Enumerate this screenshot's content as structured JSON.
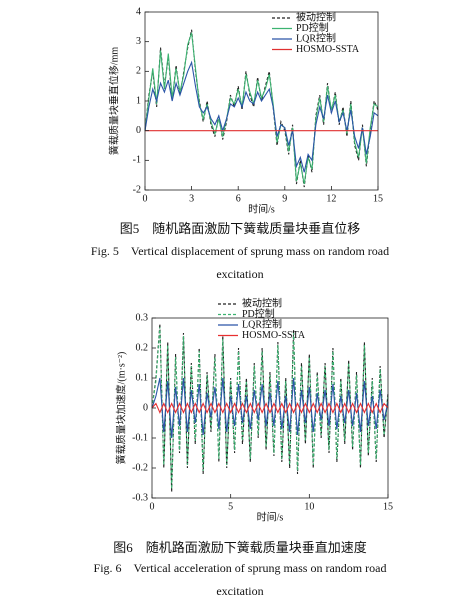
{
  "chart_data": [
    {
      "type": "line",
      "caption_cn": "图5　随机路面激励下簧载质量块垂直位移",
      "caption_en": "Fig. 5　Vertical displacement of sprung mass on random road excitation",
      "xlabel": "时间/s",
      "ylabel": "簧载质量块垂直位移/mm",
      "xlim": [
        0,
        15
      ],
      "ylim": [
        -2,
        4
      ],
      "xticks": [
        0,
        3,
        6,
        9,
        12,
        15
      ],
      "yticks": [
        -2,
        -1,
        0,
        1,
        2,
        3,
        4
      ],
      "x": [
        0,
        0.25,
        0.5,
        0.75,
        1,
        1.25,
        1.5,
        1.75,
        2,
        2.25,
        2.5,
        2.75,
        3,
        3.25,
        3.5,
        3.75,
        4,
        4.25,
        4.5,
        4.75,
        5,
        5.25,
        5.5,
        5.75,
        6,
        6.25,
        6.5,
        6.75,
        7,
        7.25,
        7.5,
        7.75,
        8,
        8.25,
        8.5,
        8.75,
        9,
        9.25,
        9.5,
        9.75,
        10,
        10.25,
        10.5,
        10.75,
        11,
        11.25,
        11.5,
        11.75,
        12,
        12.25,
        12.5,
        12.75,
        13,
        13.25,
        13.5,
        13.75,
        14,
        14.25,
        14.5,
        14.75,
        15
      ],
      "series": [
        {
          "name": "被动控制",
          "color": "#222222",
          "dashed": true,
          "values": [
            0,
            1.2,
            2.0,
            0.8,
            2.8,
            1.5,
            2.5,
            1.0,
            2.2,
            1.2,
            2.0,
            2.8,
            3.4,
            2.0,
            1.0,
            0.3,
            1.0,
            0.2,
            -0.2,
            0.5,
            -0.3,
            0.3,
            1.2,
            0.8,
            1.5,
            0.7,
            2.0,
            1.2,
            0.8,
            1.8,
            1.0,
            1.5,
            2.0,
            0.8,
            -0.5,
            0.3,
            0.0,
            -0.8,
            0.2,
            -1.8,
            -1.0,
            -1.9,
            -0.8,
            -1.4,
            0.5,
            1.2,
            0.2,
            1.6,
            0.6,
            1.3,
            0.2,
            0.8,
            -0.2,
            1.0,
            -0.5,
            -1.0,
            0.2,
            -1.2,
            0.0,
            1.0,
            0.7
          ]
        },
        {
          "name": "PD控制",
          "color": "#3cb371",
          "dashed": false,
          "values": [
            0,
            1.1,
            2.1,
            0.9,
            2.7,
            1.4,
            2.6,
            1.1,
            2.1,
            1.3,
            1.9,
            2.9,
            3.3,
            2.1,
            0.9,
            0.4,
            0.9,
            0.3,
            -0.1,
            0.4,
            -0.2,
            0.4,
            1.1,
            0.9,
            1.4,
            0.8,
            1.9,
            1.3,
            0.9,
            1.7,
            1.1,
            1.4,
            1.9,
            0.9,
            -0.4,
            0.2,
            0.1,
            -0.7,
            0.1,
            -1.7,
            -1.1,
            -1.8,
            -0.9,
            -1.3,
            0.4,
            1.1,
            0.3,
            1.5,
            0.7,
            1.2,
            0.3,
            0.7,
            -0.1,
            0.9,
            -0.4,
            -0.9,
            0.1,
            -1.1,
            0.1,
            0.9,
            0.8
          ]
        },
        {
          "name": "LQR控制",
          "color": "#2b55a8",
          "dashed": false,
          "values": [
            0,
            0.8,
            1.4,
            1.0,
            1.6,
            1.3,
            1.7,
            1.0,
            1.6,
            1.2,
            1.6,
            2.0,
            2.3,
            1.5,
            0.8,
            0.6,
            0.8,
            0.4,
            0.2,
            0.5,
            0.0,
            0.4,
            0.9,
            0.8,
            1.1,
            0.8,
            1.3,
            1.0,
            0.9,
            1.3,
            1.0,
            1.2,
            1.4,
            0.8,
            -0.2,
            0.2,
            0.1,
            -0.5,
            0.0,
            -1.2,
            -0.9,
            -1.4,
            -0.8,
            -1.0,
            0.2,
            0.8,
            0.4,
            1.2,
            0.6,
            1.0,
            0.3,
            0.6,
            0.0,
            0.7,
            -0.2,
            -0.6,
            0.1,
            -0.8,
            -0.2,
            0.6,
            0.5
          ]
        },
        {
          "name": "HOSMO-SSTA",
          "color": "#e03030",
          "dashed": false,
          "values": [
            0,
            0,
            0,
            0,
            0,
            0,
            0,
            0,
            0,
            0,
            0,
            0,
            0,
            0,
            0,
            0,
            0,
            0,
            0,
            0,
            0,
            0,
            0,
            0,
            0,
            0,
            0,
            0,
            0,
            0,
            0,
            0,
            0,
            0,
            0,
            0,
            0,
            0,
            0,
            0,
            0,
            0,
            0,
            0,
            0,
            0,
            0,
            0,
            0,
            0,
            0,
            0,
            0,
            0,
            0,
            0,
            0,
            0,
            0,
            0,
            0
          ]
        }
      ]
    },
    {
      "type": "line",
      "caption_cn": "图6　随机路面激励下簧载质量块垂直加速度",
      "caption_en": "Fig. 6　Vertical acceleration of sprung mass on random road excitation",
      "xlabel": "时间/s",
      "ylabel": "簧载质量块加速度/(m·s⁻²)",
      "xlim": [
        0,
        15
      ],
      "ylim": [
        -0.3,
        0.3
      ],
      "xticks": [
        0,
        5,
        10,
        15
      ],
      "yticks": [
        -0.3,
        -0.2,
        -0.1,
        0,
        0.1,
        0.2,
        0.3
      ],
      "x": [
        0,
        0.25,
        0.5,
        0.75,
        1,
        1.25,
        1.5,
        1.75,
        2,
        2.25,
        2.5,
        2.75,
        3,
        3.25,
        3.5,
        3.75,
        4,
        4.25,
        4.5,
        4.75,
        5,
        5.25,
        5.5,
        5.75,
        6,
        6.25,
        6.5,
        6.75,
        7,
        7.25,
        7.5,
        7.75,
        8,
        8.25,
        8.5,
        8.75,
        9,
        9.25,
        9.5,
        9.75,
        10,
        10.25,
        10.5,
        10.75,
        11,
        11.25,
        11.5,
        11.75,
        12,
        12.25,
        12.5,
        12.75,
        13,
        13.25,
        13.5,
        13.75,
        14,
        14.25,
        14.5,
        14.75,
        15
      ],
      "series": [
        {
          "name": "被动控制",
          "color": "#222222",
          "dashed": true,
          "values": [
            0,
            0.1,
            0.28,
            -0.2,
            0.22,
            -0.28,
            0.18,
            -0.15,
            0.25,
            -0.2,
            0.15,
            -0.12,
            0.2,
            -0.22,
            0.12,
            -0.08,
            0.18,
            -0.18,
            0.24,
            -0.2,
            0.1,
            -0.15,
            0.2,
            -0.12,
            0.1,
            -0.18,
            0.15,
            -0.1,
            0.2,
            -0.14,
            0.12,
            -0.16,
            0.22,
            -0.18,
            0.1,
            -0.2,
            0.26,
            -0.22,
            0.15,
            -0.12,
            0.18,
            -0.2,
            0.12,
            -0.1,
            0.15,
            -0.15,
            0.2,
            -0.18,
            0.1,
            -0.12,
            0.16,
            -0.14,
            0.12,
            -0.2,
            0.22,
            -0.16,
            0.1,
            -0.18,
            0.14,
            -0.1,
            0.05
          ]
        },
        {
          "name": "PD控制",
          "color": "#3cb371",
          "dashed": true,
          "values": [
            0,
            0.09,
            0.27,
            -0.19,
            0.21,
            -0.27,
            0.17,
            -0.14,
            0.24,
            -0.19,
            0.14,
            -0.11,
            0.19,
            -0.21,
            0.11,
            -0.07,
            0.17,
            -0.17,
            0.23,
            -0.19,
            0.09,
            -0.14,
            0.19,
            -0.11,
            0.09,
            -0.17,
            0.14,
            -0.09,
            0.19,
            -0.13,
            0.11,
            -0.15,
            0.21,
            -0.17,
            0.09,
            -0.19,
            0.25,
            -0.21,
            0.14,
            -0.11,
            0.17,
            -0.19,
            0.11,
            -0.09,
            0.14,
            -0.14,
            0.19,
            -0.17,
            0.09,
            -0.11,
            0.15,
            -0.13,
            0.11,
            -0.19,
            0.21,
            -0.15,
            0.09,
            -0.17,
            0.13,
            -0.09,
            0.04
          ]
        },
        {
          "name": "LQR控制",
          "color": "#2b55a8",
          "dashed": false,
          "values": [
            0,
            0.04,
            0.1,
            -0.08,
            0.09,
            -0.1,
            0.07,
            -0.06,
            0.1,
            -0.08,
            0.06,
            -0.05,
            0.08,
            -0.09,
            0.05,
            -0.03,
            0.07,
            -0.07,
            0.1,
            -0.08,
            0.04,
            -0.06,
            0.08,
            -0.05,
            0.04,
            -0.07,
            0.06,
            -0.04,
            0.08,
            -0.06,
            0.05,
            -0.06,
            0.09,
            -0.07,
            0.04,
            -0.08,
            0.1,
            -0.09,
            0.06,
            -0.05,
            0.07,
            -0.08,
            0.05,
            -0.04,
            0.06,
            -0.06,
            0.08,
            -0.07,
            0.04,
            -0.05,
            0.06,
            -0.06,
            0.05,
            -0.08,
            0.09,
            -0.06,
            0.04,
            -0.07,
            0.06,
            -0.04,
            0.02
          ]
        },
        {
          "name": "HOSMO-SSTA",
          "color": "#e83030",
          "dashed": false,
          "values": [
            0,
            0.015,
            -0.015,
            0.015,
            -0.015,
            0.015,
            -0.015,
            0.015,
            -0.015,
            0.015,
            -0.015,
            0.015,
            -0.015,
            0.015,
            -0.015,
            0.015,
            -0.015,
            0.015,
            -0.015,
            0.015,
            -0.015,
            0.015,
            -0.015,
            0.015,
            -0.015,
            0.015,
            -0.015,
            0.015,
            -0.015,
            0.015,
            -0.015,
            0.015,
            -0.015,
            0.015,
            -0.015,
            0.015,
            -0.015,
            0.015,
            -0.015,
            0.015,
            -0.015,
            0.015,
            -0.015,
            0.015,
            -0.015,
            0.015,
            -0.015,
            0.015,
            -0.015,
            0.015,
            -0.015,
            0.015,
            -0.015,
            0.015,
            -0.015,
            0.015,
            -0.015,
            0.015,
            -0.015,
            0.015,
            0
          ]
        }
      ]
    }
  ]
}
